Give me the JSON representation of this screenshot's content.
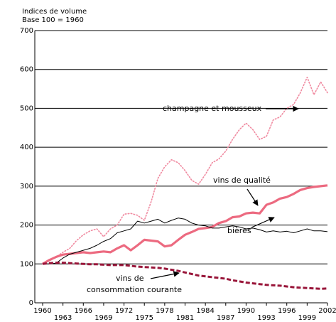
{
  "chart_data": {
    "type": "line",
    "subtitle": "Indices de volume",
    "title": "Base 100 = 1960",
    "x": [
      1960,
      1961,
      1962,
      1963,
      1964,
      1965,
      1966,
      1967,
      1968,
      1969,
      1970,
      1971,
      1972,
      1973,
      1974,
      1975,
      1976,
      1977,
      1978,
      1979,
      1980,
      1981,
      1982,
      1983,
      1984,
      1985,
      1986,
      1987,
      1988,
      1989,
      1990,
      1991,
      1992,
      1993,
      1994,
      1995,
      1996,
      1997,
      1998,
      1999,
      2000,
      2001,
      2002
    ],
    "xlim": [
      1960,
      2002
    ],
    "xticks": [
      1960,
      1963,
      1966,
      1969,
      1972,
      1975,
      1978,
      1981,
      1984,
      1987,
      1990,
      1993,
      1996,
      1999,
      2002
    ],
    "ylim": [
      0,
      700
    ],
    "yticks": [
      0,
      100,
      200,
      300,
      400,
      500,
      600,
      700
    ],
    "grid": true,
    "series": [
      {
        "name": "champagne et mousseux",
        "color": "#f08aa0",
        "line_style": "dotted",
        "values": [
          100,
          108,
          118,
          130,
          140,
          160,
          175,
          185,
          190,
          170,
          190,
          200,
          228,
          230,
          225,
          212,
          260,
          320,
          350,
          368,
          360,
          340,
          315,
          305,
          330,
          360,
          370,
          390,
          420,
          445,
          462,
          445,
          420,
          428,
          470,
          478,
          500,
          510,
          540,
          580,
          535,
          568,
          540
        ]
      },
      {
        "name": "vins de qualité",
        "color": "#ec6a80",
        "line_style": "solid",
        "values": [
          100,
          110,
          118,
          124,
          126,
          128,
          130,
          128,
          130,
          132,
          130,
          140,
          148,
          135,
          148,
          162,
          160,
          158,
          145,
          148,
          162,
          175,
          182,
          190,
          192,
          195,
          205,
          210,
          220,
          222,
          230,
          232,
          230,
          252,
          258,
          268,
          272,
          280,
          290,
          295,
          298,
          300,
          302
        ]
      },
      {
        "name": "bières",
        "color": "#000000",
        "line_style": "solid",
        "values": [
          100,
          100,
          102,
          115,
          125,
          130,
          135,
          140,
          148,
          158,
          165,
          180,
          185,
          190,
          210,
          205,
          210,
          215,
          205,
          212,
          218,
          215,
          205,
          200,
          198,
          192,
          192,
          195,
          198,
          195,
          190,
          192,
          188,
          182,
          185,
          182,
          184,
          180,
          185,
          190,
          185,
          185,
          183
        ]
      },
      {
        "name": "vins de consommation courante",
        "color": "#99163a",
        "line_style": "dashed",
        "values": [
          100,
          102,
          103,
          103,
          102,
          101,
          100,
          99,
          99,
          98,
          97,
          97,
          97,
          95,
          93,
          92,
          91,
          90,
          88,
          85,
          82,
          78,
          74,
          70,
          68,
          66,
          64,
          62,
          58,
          55,
          52,
          50,
          48,
          46,
          45,
          44,
          42,
          40,
          39,
          38,
          37,
          36,
          37
        ]
      }
    ],
    "annotations": [
      "champagne et mousseux",
      "vins de qualité",
      "bières",
      "vins de",
      "consommation courante"
    ]
  }
}
